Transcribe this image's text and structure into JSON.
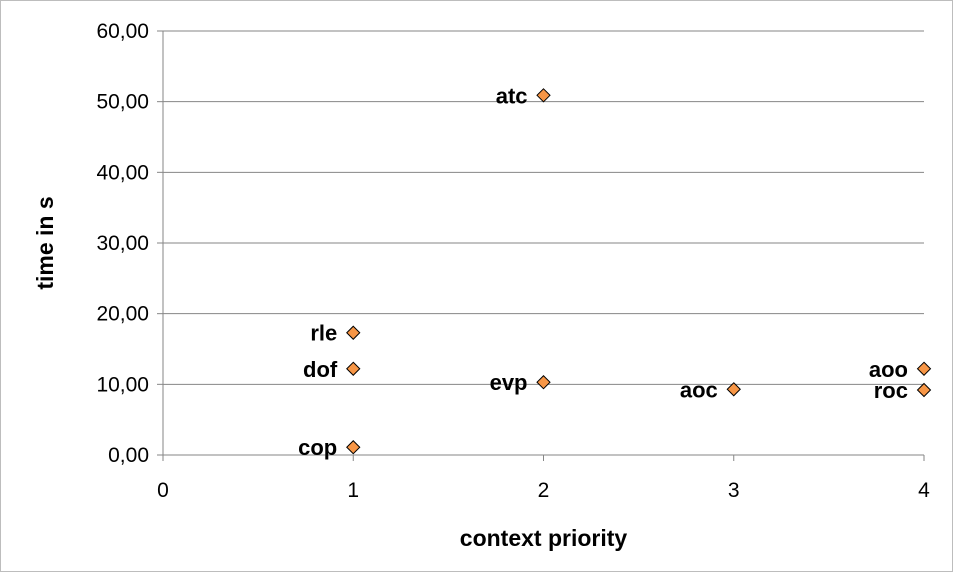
{
  "chart_data": {
    "type": "scatter",
    "title": "",
    "xlabel": "context priority",
    "ylabel": "time in s",
    "xlim": [
      0,
      4
    ],
    "ylim": [
      0,
      60
    ],
    "x_ticks": [
      0,
      1,
      2,
      3,
      4
    ],
    "x_tick_labels": [
      "0",
      "1",
      "2",
      "3",
      "4"
    ],
    "y_ticks": [
      0,
      10,
      20,
      30,
      40,
      50,
      60
    ],
    "y_tick_labels": [
      "0,00",
      "10,00",
      "20,00",
      "30,00",
      "40,00",
      "50,00",
      "60,00"
    ],
    "grid": "horizontal",
    "legend": "none",
    "marker": "diamond",
    "marker_color": "#F79646",
    "marker_edge_color": "#000000",
    "points": [
      {
        "label": "atc",
        "x": 2,
        "y": 50.9
      },
      {
        "label": "rle",
        "x": 1,
        "y": 17.3
      },
      {
        "label": "dof",
        "x": 1,
        "y": 12.2
      },
      {
        "label": "cop",
        "x": 1,
        "y": 1.1
      },
      {
        "label": "evp",
        "x": 2,
        "y": 10.3
      },
      {
        "label": "aoc",
        "x": 3,
        "y": 9.3
      },
      {
        "label": "aoo",
        "x": 4,
        "y": 12.2
      },
      {
        "label": "roc",
        "x": 4,
        "y": 9.2
      }
    ]
  }
}
